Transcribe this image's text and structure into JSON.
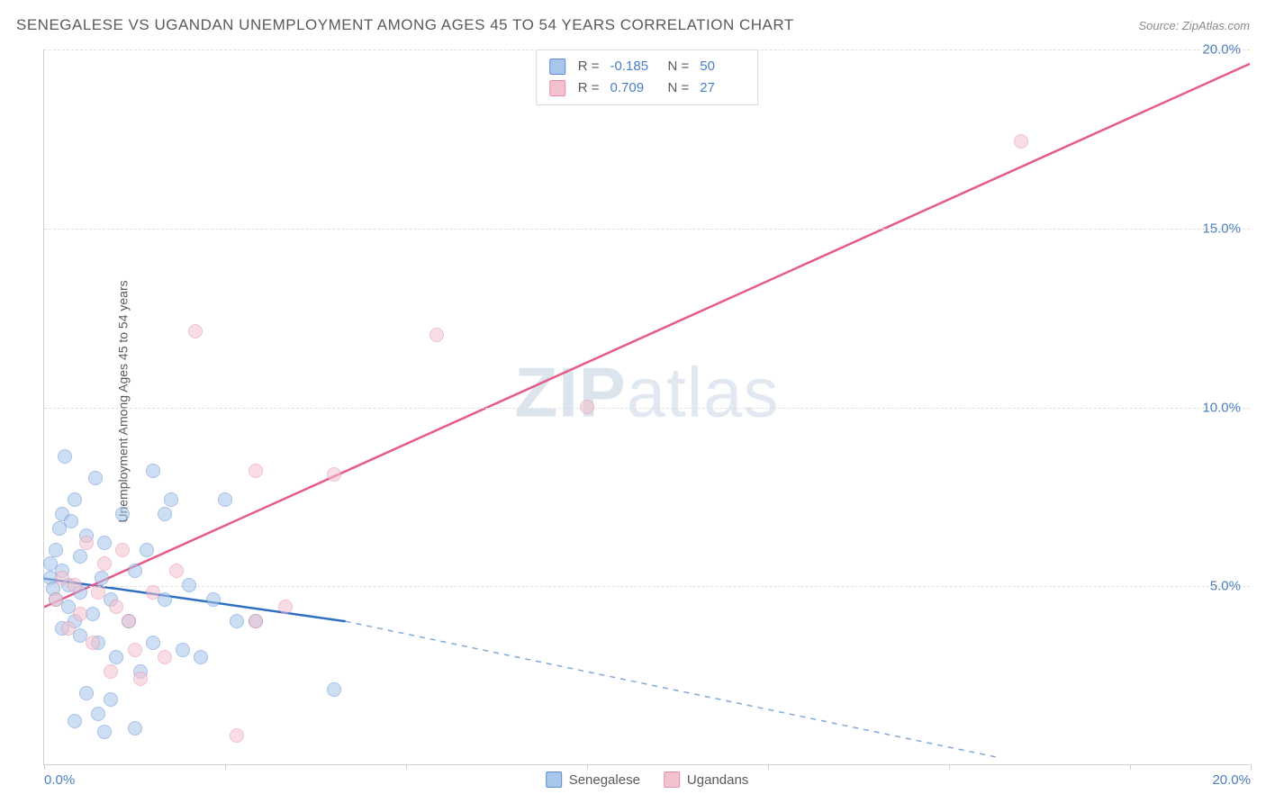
{
  "title": "SENEGALESE VS UGANDAN UNEMPLOYMENT AMONG AGES 45 TO 54 YEARS CORRELATION CHART",
  "source_label": "Source: ZipAtlas.com",
  "y_axis_label": "Unemployment Among Ages 45 to 54 years",
  "watermark": {
    "part1": "ZIP",
    "part2": "atlas"
  },
  "chart": {
    "type": "scatter-correlation",
    "background_color": "#ffffff",
    "grid_color": "#e0e0e0",
    "axis_color": "#cfcfcf",
    "tick_label_color": "#4a7ec2",
    "xlim": [
      0,
      20
    ],
    "ylim": [
      0,
      20
    ],
    "x_ticks": [
      0,
      3,
      6,
      9,
      12,
      15,
      18,
      20
    ],
    "x_tick_labels": {
      "0": "0.0%",
      "20": "20.0%"
    },
    "y_gridlines": [
      5,
      10,
      15,
      20
    ],
    "y_tick_labels": {
      "5": "5.0%",
      "10": "10.0%",
      "15": "15.0%",
      "20": "20.0%"
    },
    "marker_radius": 8,
    "marker_opacity": 0.55,
    "series": [
      {
        "name": "Senegalese",
        "fill_color": "#a8c5ea",
        "stroke_color": "#5a8fd4",
        "line_color": "#2e6fc2",
        "R": "-0.185",
        "N": "50",
        "trend": {
          "x1": 0,
          "y1": 5.2,
          "x2": 5,
          "y2": 4.0,
          "dash_x2": 15.8,
          "dash_y2": 0.2
        },
        "points": [
          [
            0.1,
            5.2
          ],
          [
            0.1,
            5.6
          ],
          [
            0.15,
            4.9
          ],
          [
            0.2,
            6.0
          ],
          [
            0.2,
            4.6
          ],
          [
            0.25,
            6.6
          ],
          [
            0.3,
            7.0
          ],
          [
            0.3,
            5.4
          ],
          [
            0.35,
            8.6
          ],
          [
            0.4,
            5.0
          ],
          [
            0.4,
            4.4
          ],
          [
            0.45,
            6.8
          ],
          [
            0.5,
            4.0
          ],
          [
            0.5,
            7.4
          ],
          [
            0.6,
            3.6
          ],
          [
            0.6,
            5.8
          ],
          [
            0.7,
            6.4
          ],
          [
            0.7,
            2.0
          ],
          [
            0.8,
            4.2
          ],
          [
            0.85,
            8.0
          ],
          [
            0.9,
            3.4
          ],
          [
            0.95,
            5.2
          ],
          [
            1.0,
            0.9
          ],
          [
            1.0,
            6.2
          ],
          [
            1.1,
            4.6
          ],
          [
            1.2,
            3.0
          ],
          [
            1.3,
            7.0
          ],
          [
            1.4,
            4.0
          ],
          [
            1.5,
            5.4
          ],
          [
            1.6,
            2.6
          ],
          [
            1.7,
            6.0
          ],
          [
            1.8,
            8.2
          ],
          [
            1.8,
            3.4
          ],
          [
            2.0,
            4.6
          ],
          [
            2.1,
            7.4
          ],
          [
            2.3,
            3.2
          ],
          [
            2.4,
            5.0
          ],
          [
            2.6,
            3.0
          ],
          [
            2.8,
            4.6
          ],
          [
            3.0,
            7.4
          ],
          [
            3.2,
            4.0
          ],
          [
            3.5,
            4.0
          ],
          [
            0.5,
            1.2
          ],
          [
            1.1,
            1.8
          ],
          [
            1.5,
            1.0
          ],
          [
            0.9,
            1.4
          ],
          [
            2.0,
            7.0
          ],
          [
            4.8,
            2.1
          ],
          [
            0.3,
            3.8
          ],
          [
            0.6,
            4.8
          ]
        ]
      },
      {
        "name": "Ugandans",
        "fill_color": "#f4c2cf",
        "stroke_color": "#e78fa6",
        "line_color": "#e65a87",
        "R": "0.709",
        "N": "27",
        "trend": {
          "x1": 0,
          "y1": 4.4,
          "x2": 20,
          "y2": 19.6
        },
        "points": [
          [
            0.2,
            4.6
          ],
          [
            0.3,
            5.2
          ],
          [
            0.4,
            3.8
          ],
          [
            0.5,
            5.0
          ],
          [
            0.6,
            4.2
          ],
          [
            0.7,
            6.2
          ],
          [
            0.8,
            3.4
          ],
          [
            0.9,
            4.8
          ],
          [
            1.0,
            5.6
          ],
          [
            1.1,
            2.6
          ],
          [
            1.2,
            4.4
          ],
          [
            1.3,
            6.0
          ],
          [
            1.5,
            3.2
          ],
          [
            1.6,
            2.4
          ],
          [
            1.8,
            4.8
          ],
          [
            2.0,
            3.0
          ],
          [
            2.2,
            5.4
          ],
          [
            2.5,
            12.1
          ],
          [
            3.2,
            0.8
          ],
          [
            3.5,
            4.0
          ],
          [
            4.0,
            4.4
          ],
          [
            4.8,
            8.1
          ],
          [
            6.5,
            12.0
          ],
          [
            3.5,
            8.2
          ],
          [
            9.0,
            10.0
          ],
          [
            16.2,
            17.4
          ],
          [
            1.4,
            4.0
          ]
        ]
      }
    ],
    "legend_top": [
      {
        "swatch_fill": "#a8c5ea",
        "swatch_stroke": "#5a8fd4",
        "R": "-0.185",
        "N": "50"
      },
      {
        "swatch_fill": "#f4c2cf",
        "swatch_stroke": "#e78fa6",
        "R": "0.709",
        "N": "27"
      }
    ],
    "legend_bottom": [
      {
        "label": "Senegalese",
        "swatch_fill": "#a8c5ea",
        "swatch_stroke": "#5a8fd4"
      },
      {
        "label": "Ugandans",
        "swatch_fill": "#f4c2cf",
        "swatch_stroke": "#e78fa6"
      }
    ]
  }
}
